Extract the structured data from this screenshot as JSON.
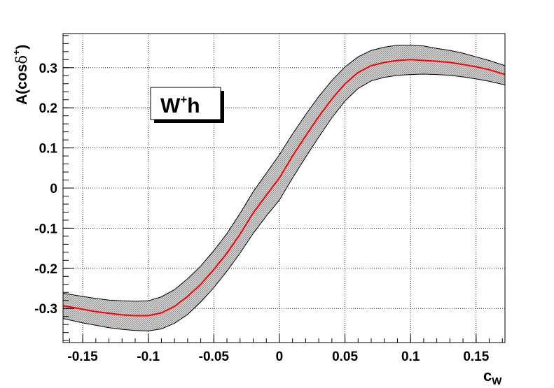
{
  "chart_data": {
    "type": "line",
    "title": "",
    "xlabel": "c",
    "xlabel_sub": "W",
    "ylabel": "A(cos",
    "ylabel_symbol": "δ",
    "ylabel_sup": "+",
    "ylabel_close": ")",
    "xlim": [
      -0.165,
      0.172
    ],
    "ylim": [
      -0.385,
      0.385
    ],
    "grid": true,
    "x_ticks": [
      -0.15,
      -0.1,
      -0.05,
      0,
      0.05,
      0.1,
      0.15
    ],
    "x_tick_labels": [
      "-0.15",
      "-0.1",
      "-0.05",
      "0",
      "0.05",
      "0.1",
      "0.15"
    ],
    "y_ticks": [
      -0.3,
      -0.2,
      -0.1,
      0,
      0.1,
      0.2,
      0.3
    ],
    "y_tick_labels": [
      "-0.3",
      "-0.2",
      "-0.1",
      "0",
      "0.1",
      "0.2",
      "0.3"
    ],
    "annotation": {
      "main": "W",
      "sup": "+",
      "tail": "h"
    },
    "colors": {
      "central": "#ff0000",
      "band_fill": "#c8c8c8",
      "band_edge": "#000000",
      "grid": "#000000"
    },
    "x": [
      -0.165,
      -0.15,
      -0.14,
      -0.13,
      -0.12,
      -0.11,
      -0.1,
      -0.09,
      -0.08,
      -0.07,
      -0.06,
      -0.05,
      -0.04,
      -0.03,
      -0.02,
      -0.01,
      0,
      0.01,
      0.02,
      0.03,
      0.04,
      0.05,
      0.06,
      0.07,
      0.08,
      0.09,
      0.1,
      0.11,
      0.12,
      0.13,
      0.14,
      0.15,
      0.16,
      0.172
    ],
    "series": [
      {
        "values": [
          -0.293,
          -0.302,
          -0.308,
          -0.312,
          -0.316,
          -0.318,
          -0.318,
          -0.311,
          -0.295,
          -0.27,
          -0.24,
          -0.203,
          -0.162,
          -0.115,
          -0.062,
          -0.018,
          0.025,
          0.08,
          0.13,
          0.178,
          0.222,
          0.26,
          0.288,
          0.305,
          0.313,
          0.318,
          0.32,
          0.318,
          0.316,
          0.313,
          0.308,
          0.302,
          0.295,
          0.283
        ]
      }
    ],
    "band": {
      "upper": [
        -0.262,
        -0.27,
        -0.275,
        -0.279,
        -0.281,
        -0.282,
        -0.281,
        -0.271,
        -0.253,
        -0.226,
        -0.194,
        -0.156,
        -0.113,
        -0.063,
        -0.009,
        0.037,
        0.083,
        0.135,
        0.183,
        0.228,
        0.268,
        0.302,
        0.327,
        0.343,
        0.351,
        0.356,
        0.356,
        0.354,
        0.348,
        0.343,
        0.336,
        0.327,
        0.318,
        0.305
      ],
      "lower": [
        -0.325,
        -0.336,
        -0.342,
        -0.348,
        -0.352,
        -0.355,
        -0.356,
        -0.351,
        -0.337,
        -0.315,
        -0.284,
        -0.248,
        -0.207,
        -0.162,
        -0.113,
        -0.07,
        -0.03,
        0.025,
        0.077,
        0.127,
        0.175,
        0.217,
        0.248,
        0.267,
        0.276,
        0.281,
        0.283,
        0.284,
        0.283,
        0.281,
        0.277,
        0.272,
        0.266,
        0.257
      ]
    }
  }
}
